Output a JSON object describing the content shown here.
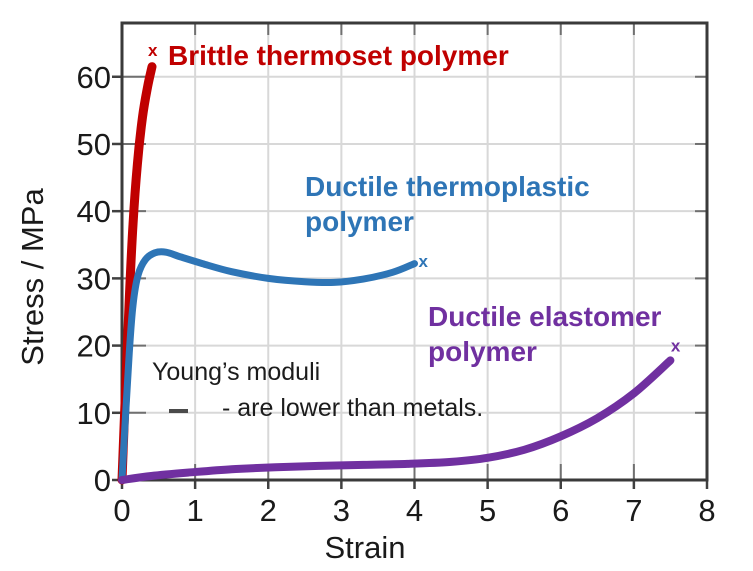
{
  "figure": {
    "background": "#ffffff",
    "axis_color": "#3a3a3a",
    "grid_color": "#d8d8d8",
    "tick_color": "#707070",
    "text_color": "#1a1a1a"
  },
  "chart_data": {
    "type": "line",
    "title": "",
    "xlabel": "Strain",
    "ylabel": "Stress / MPa",
    "xlim": [
      0,
      8
    ],
    "ylim": [
      0,
      68
    ],
    "xticks": [
      0,
      1,
      2,
      3,
      4,
      5,
      6,
      7,
      8
    ],
    "yticks": [
      0,
      10,
      20,
      30,
      40,
      50,
      60
    ],
    "grid": true,
    "legend": "inline-annotations",
    "series": [
      {
        "name": "Brittle thermoset polymer",
        "label_lines": [
          "Brittle thermoset polymer"
        ],
        "color": "#c00000",
        "stroke_width": 9,
        "points": [
          [
            0,
            0
          ],
          [
            0.05,
            14
          ],
          [
            0.1,
            27
          ],
          [
            0.15,
            38
          ],
          [
            0.21,
            47
          ],
          [
            0.28,
            54
          ],
          [
            0.35,
            58.5
          ],
          [
            0.41,
            61.5
          ]
        ],
        "end_marker": {
          "symbol": "x",
          "x": 0.42,
          "y": 64
        }
      },
      {
        "name": "Ductile thermoplastic polymer",
        "label_lines": [
          "Ductile thermoplastic",
          "polymer"
        ],
        "color": "#2e75b6",
        "stroke_width": 7,
        "points": [
          [
            0,
            0
          ],
          [
            0.05,
            10
          ],
          [
            0.1,
            19
          ],
          [
            0.15,
            26
          ],
          [
            0.22,
            30.5
          ],
          [
            0.32,
            32.8
          ],
          [
            0.45,
            33.8
          ],
          [
            0.6,
            33.9
          ],
          [
            0.8,
            33.2
          ],
          [
            1.1,
            32.2
          ],
          [
            1.5,
            31.0
          ],
          [
            2.0,
            30.0
          ],
          [
            2.5,
            29.5
          ],
          [
            2.9,
            29.4
          ],
          [
            3.3,
            29.9
          ],
          [
            3.7,
            30.9
          ],
          [
            4.0,
            32.2
          ]
        ],
        "end_marker": {
          "symbol": "x",
          "x": 4.12,
          "y": 32.6
        }
      },
      {
        "name": "Ductile elastomer polymer",
        "label_lines": [
          "Ductile elastomer",
          "polymer"
        ],
        "color": "#7030a0",
        "stroke_width": 8,
        "points": [
          [
            0,
            0
          ],
          [
            0.4,
            0.6
          ],
          [
            0.9,
            1.1
          ],
          [
            1.5,
            1.6
          ],
          [
            2.1,
            1.9
          ],
          [
            2.7,
            2.1
          ],
          [
            3.3,
            2.25
          ],
          [
            3.9,
            2.4
          ],
          [
            4.5,
            2.7
          ],
          [
            5.0,
            3.3
          ],
          [
            5.5,
            4.5
          ],
          [
            6.0,
            6.5
          ],
          [
            6.5,
            9.2
          ],
          [
            7.0,
            12.9
          ],
          [
            7.5,
            17.8
          ]
        ],
        "end_marker": {
          "symbol": "x",
          "x": 7.57,
          "y": 20
        }
      }
    ],
    "annotations": [
      {
        "text": "Young’s moduli"
      },
      {
        "text": "- are lower than metals."
      }
    ]
  }
}
